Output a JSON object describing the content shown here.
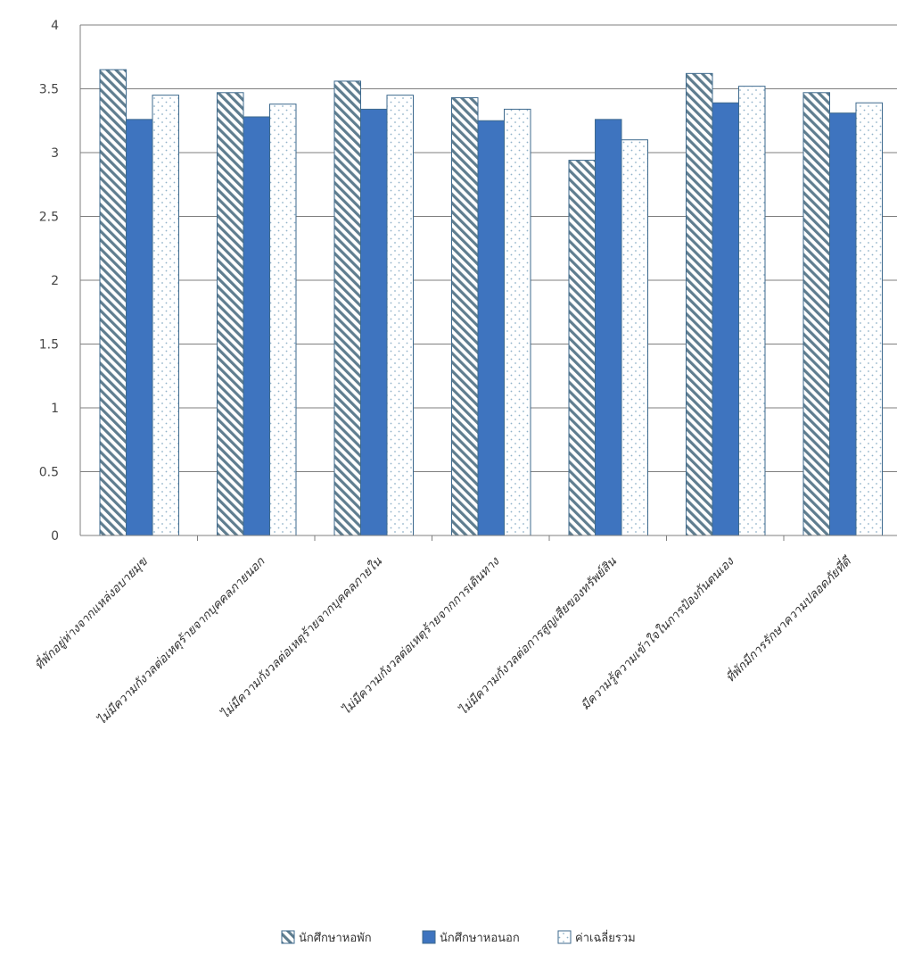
{
  "chart_data": {
    "type": "bar",
    "categories": [
      "ที่พักอยู่ห่างจากแหล่งอบายมุข",
      "ไม่มีความกังวลต่อเหตุร้ายจากบุคคลภายนอก",
      "ไม่มีความกังวลต่อเหตุร้ายจากบุคคลภายใน",
      "ไม่มีความกังวลต่อเหตุร้ายจากการเดินทาง",
      "ไม่มีความกังวลต่อการสูญเสียของทรัพย์สิน",
      "มีความรู้ความเข้าใจในการป้องกันตนเอง",
      "ที่พักมีการรักษาความปลอดภัยที่ดี"
    ],
    "series": [
      {
        "name": "นักศึกษาหอพัก",
        "values": [
          3.65,
          3.47,
          3.56,
          3.43,
          2.94,
          3.62,
          3.47
        ]
      },
      {
        "name": "นักศึกษาหอนอก",
        "values": [
          3.26,
          3.28,
          3.34,
          3.25,
          3.26,
          3.39,
          3.31
        ]
      },
      {
        "name": "ค่าเฉลี่ยรวม",
        "values": [
          3.45,
          3.38,
          3.45,
          3.34,
          3.1,
          3.52,
          3.39
        ]
      }
    ],
    "ylim": [
      0,
      4
    ],
    "yticks": [
      "0",
      "0.5",
      "1",
      "1.5",
      "2",
      "2.5",
      "3",
      "3.5",
      "4"
    ],
    "grid": true,
    "legend_position": "bottom",
    "title": "",
    "xlabel": "",
    "ylabel": "",
    "colors": {
      "series1_hatch": "#5f7d8f",
      "series2_fill": "#3e74bf",
      "series3_dots": "#8fb2c9",
      "bar_border": "#3e6a8e",
      "grid": "#7f7f7f"
    }
  }
}
